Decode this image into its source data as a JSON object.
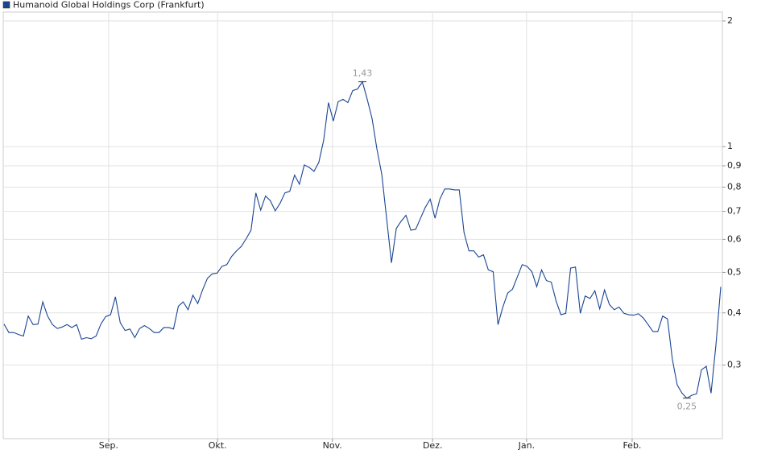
{
  "chart_data": {
    "type": "line",
    "series": [
      {
        "name": "Humanoid Global Holdings Corp (Frankfurt)",
        "color": "#1a4593",
        "values": [
          0.376,
          0.359,
          0.359,
          0.355,
          0.352,
          0.393,
          0.375,
          0.376,
          0.425,
          0.393,
          0.375,
          0.367,
          0.37,
          0.375,
          0.369,
          0.375,
          0.346,
          0.349,
          0.347,
          0.352,
          0.376,
          0.392,
          0.396,
          0.437,
          0.379,
          0.363,
          0.366,
          0.349,
          0.367,
          0.373,
          0.367,
          0.359,
          0.359,
          0.369,
          0.369,
          0.366,
          0.415,
          0.425,
          0.407,
          0.441,
          0.421,
          0.454,
          0.484,
          0.496,
          0.498,
          0.517,
          0.522,
          0.546,
          0.563,
          0.577,
          0.602,
          0.631,
          0.775,
          0.705,
          0.762,
          0.742,
          0.702,
          0.732,
          0.775,
          0.782,
          0.855,
          0.813,
          0.904,
          0.892,
          0.873,
          0.917,
          1.036,
          1.275,
          1.152,
          1.281,
          1.298,
          1.275,
          1.362,
          1.374,
          1.43,
          1.298,
          1.167,
          0.987,
          0.859,
          0.674,
          0.527,
          0.637,
          0.663,
          0.685,
          0.631,
          0.634,
          0.674,
          0.716,
          0.749,
          0.674,
          0.749,
          0.792,
          0.792,
          0.788,
          0.788,
          0.622,
          0.563,
          0.563,
          0.544,
          0.551,
          0.507,
          0.502,
          0.375,
          0.413,
          0.446,
          0.456,
          0.488,
          0.522,
          0.517,
          0.502,
          0.462,
          0.507,
          0.478,
          0.474,
          0.427,
          0.396,
          0.399,
          0.512,
          0.515,
          0.399,
          0.439,
          0.433,
          0.452,
          0.409,
          0.454,
          0.419,
          0.407,
          0.413,
          0.399,
          0.396,
          0.395,
          0.398,
          0.389,
          0.375,
          0.361,
          0.361,
          0.393,
          0.387,
          0.31,
          0.269,
          0.257,
          0.25,
          0.254,
          0.256,
          0.292,
          0.298,
          0.257,
          0.335,
          0.462
        ]
      }
    ],
    "xlim": [
      0,
      148
    ],
    "xticks": [
      {
        "value": 21.6,
        "label": "Sep."
      },
      {
        "value": 44.1,
        "label": "Okt."
      },
      {
        "value": 67.8,
        "label": "Nov."
      },
      {
        "value": 88.5,
        "label": "Dez."
      },
      {
        "value": 107.9,
        "label": "Jan."
      },
      {
        "value": 129.7,
        "label": "Feb."
      }
    ],
    "ylim": [
      0.2,
      2.1
    ],
    "log_y": true,
    "yticks": [
      {
        "value": 0.3,
        "label": "0,3"
      },
      {
        "value": 0.4,
        "label": "0,4"
      },
      {
        "value": 0.5,
        "label": "0,5"
      },
      {
        "value": 0.6,
        "label": "0,6"
      },
      {
        "value": 0.7,
        "label": "0,7"
      },
      {
        "value": 0.8,
        "label": "0,8"
      },
      {
        "value": 0.9,
        "label": "0,9"
      },
      1,
      2
    ],
    "grid": true,
    "annotations": [
      {
        "label": "1,43",
        "x": 74,
        "y": 1.43
      },
      {
        "label": "0,25",
        "x": 141,
        "y": 0.25
      }
    ]
  }
}
